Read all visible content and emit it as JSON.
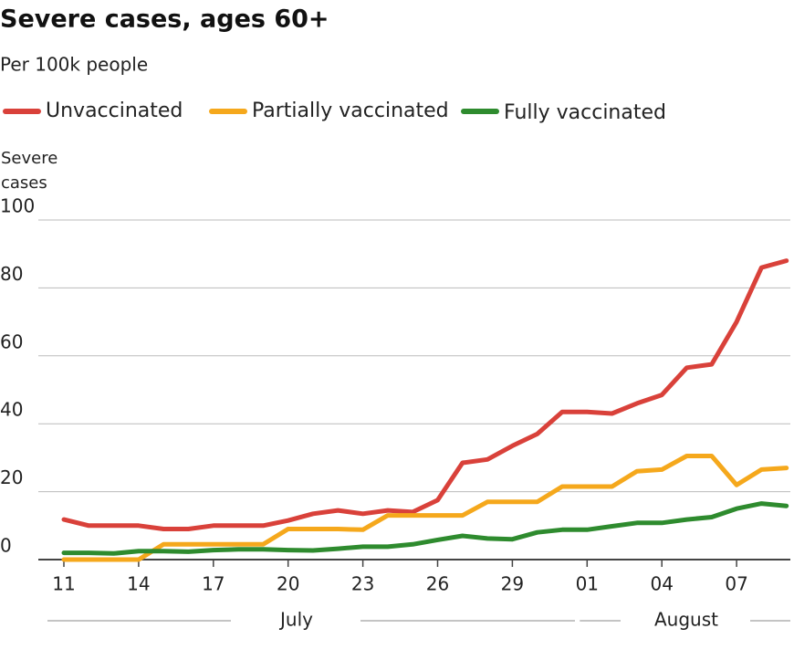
{
  "chart_data": {
    "type": "line",
    "title": "Severe cases, ages 60+",
    "subtitle": "Per 100k people",
    "y_label": "Severe cases",
    "categories": [
      "11",
      null,
      null,
      "14",
      null,
      null,
      "17",
      null,
      null,
      "20",
      null,
      null,
      "23",
      null,
      null,
      "26",
      null,
      null,
      "29",
      null,
      null,
      "01",
      null,
      null,
      "04",
      null,
      null,
      "07",
      null,
      null
    ],
    "months": [
      "July",
      "August"
    ],
    "series": [
      {
        "name": "Unvaccinated",
        "color": "#d9413a",
        "values": [
          11.8,
          10,
          10,
          10,
          9,
          9,
          10,
          10,
          10,
          11.5,
          13.5,
          14.5,
          13.5,
          14.5,
          14,
          17.5,
          28.5,
          29.5,
          33.5,
          37,
          43.5,
          43.5,
          43,
          46,
          48.5,
          56.5,
          57.5,
          70,
          86,
          88
        ]
      },
      {
        "name": "Partially vaccinated",
        "color": "#f5a81c",
        "values": [
          0,
          0,
          0,
          0,
          4.5,
          4.5,
          4.5,
          4.5,
          4.5,
          9,
          9,
          9,
          8.8,
          13,
          13,
          13,
          13,
          17,
          17,
          17,
          21.5,
          21.5,
          21.5,
          26,
          26.5,
          30.5,
          30.5,
          22,
          26.5,
          27
        ]
      },
      {
        "name": "Fully vaccinated",
        "color": "#2e8b2e",
        "values": [
          2,
          2,
          1.8,
          2.5,
          2.5,
          2.3,
          2.8,
          3,
          3,
          2.8,
          2.7,
          3.2,
          3.8,
          3.8,
          4.5,
          5.8,
          7,
          6.2,
          6,
          8,
          8.8,
          8.8,
          9.8,
          10.8,
          10.8,
          11.8,
          12.5,
          15,
          16.5,
          15.8
        ]
      }
    ],
    "ylim": [
      0,
      100
    ],
    "yticks": [
      0,
      20,
      40,
      60,
      80,
      100
    ],
    "grid": true
  }
}
